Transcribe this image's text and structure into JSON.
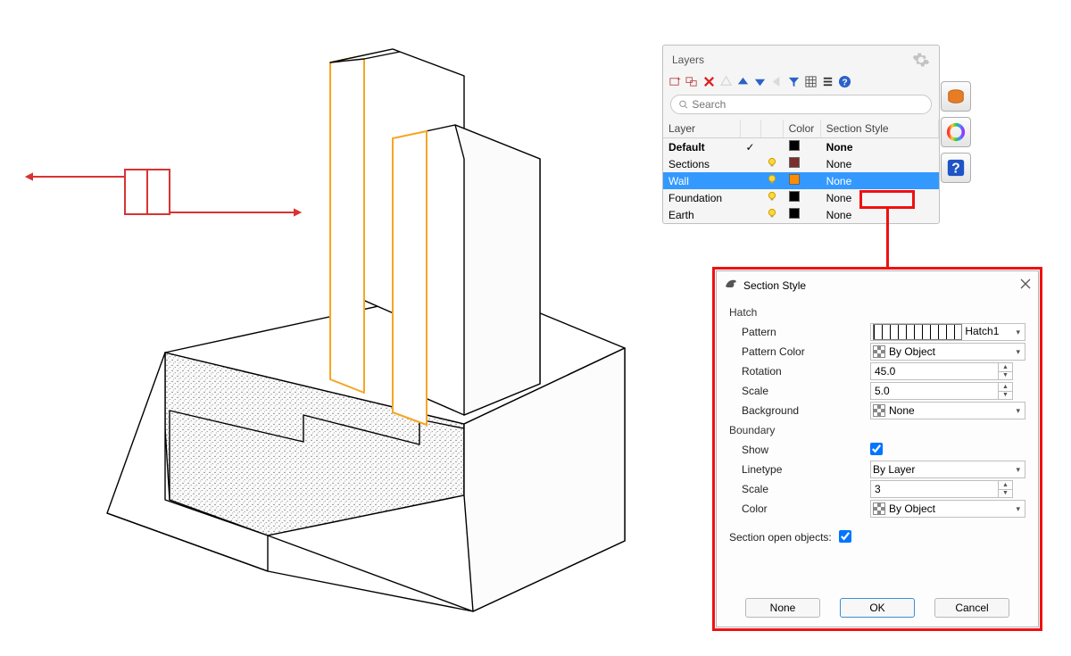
{
  "viewport": {
    "background": "#ffffff",
    "line_color": "#000000",
    "highlight_outline": "#f5a623",
    "section_indicator_color": "#d83333",
    "speckle_fill": "#d4d4d4"
  },
  "layers_panel": {
    "title": "Layers",
    "search_placeholder": "Search",
    "columns": [
      "Layer",
      "",
      "",
      "Color",
      "Section Style"
    ],
    "side_tabs": {
      "material": "#e87c24",
      "color_ring": true,
      "help": "#1e54c5"
    },
    "toolbar": [
      {
        "name": "new-layer-icon",
        "tip": "New Layer"
      },
      {
        "name": "new-sublayer-icon",
        "tip": "New Sublayer"
      },
      {
        "name": "delete-layer-icon",
        "tip": "Delete"
      },
      {
        "name": "move-up-icon",
        "tip": "Up"
      },
      {
        "name": "move-down-icon",
        "tip": "Down"
      },
      {
        "name": "filter-icon",
        "tip": "Filter"
      },
      {
        "name": "columns-icon",
        "tip": "Columns"
      },
      {
        "name": "menu-icon",
        "tip": "Menu"
      },
      {
        "name": "help-icon",
        "tip": "Help"
      }
    ],
    "rows": [
      {
        "name": "Default",
        "default": true,
        "bulb": false,
        "color": "#000000",
        "section": "None",
        "bold": true
      },
      {
        "name": "Sections",
        "default": false,
        "bulb": true,
        "color": "#7b2e2e",
        "section": "None"
      },
      {
        "name": "Wall",
        "default": false,
        "bulb": true,
        "color": "#ff8c00",
        "section": "None",
        "selected": true
      },
      {
        "name": "Foundation",
        "default": false,
        "bulb": true,
        "color": "#000000",
        "section": "None"
      },
      {
        "name": "Earth",
        "default": false,
        "bulb": true,
        "color": "#000000",
        "section": "None"
      }
    ]
  },
  "highlight": {
    "color": "#e11"
  },
  "section_dialog": {
    "title": "Section Style",
    "hatch": {
      "label": "Hatch",
      "pattern_label": "Pattern",
      "pattern_name": "Hatch1",
      "pattern_color_label": "Pattern Color",
      "pattern_color_value": "By Object",
      "rotation_label": "Rotation",
      "rotation_value": "45.0",
      "scale_label": "Scale",
      "scale_value": "5.0",
      "background_label": "Background",
      "background_value": "None"
    },
    "boundary": {
      "label": "Boundary",
      "show_label": "Show",
      "show_value": true,
      "linetype_label": "Linetype",
      "linetype_value": "By Layer",
      "scale_label": "Scale",
      "scale_value": "3",
      "color_label": "Color",
      "color_value": "By Object"
    },
    "section_open_label": "Section open objects:",
    "section_open_value": true,
    "buttons": {
      "none": "None",
      "ok": "OK",
      "cancel": "Cancel"
    }
  }
}
